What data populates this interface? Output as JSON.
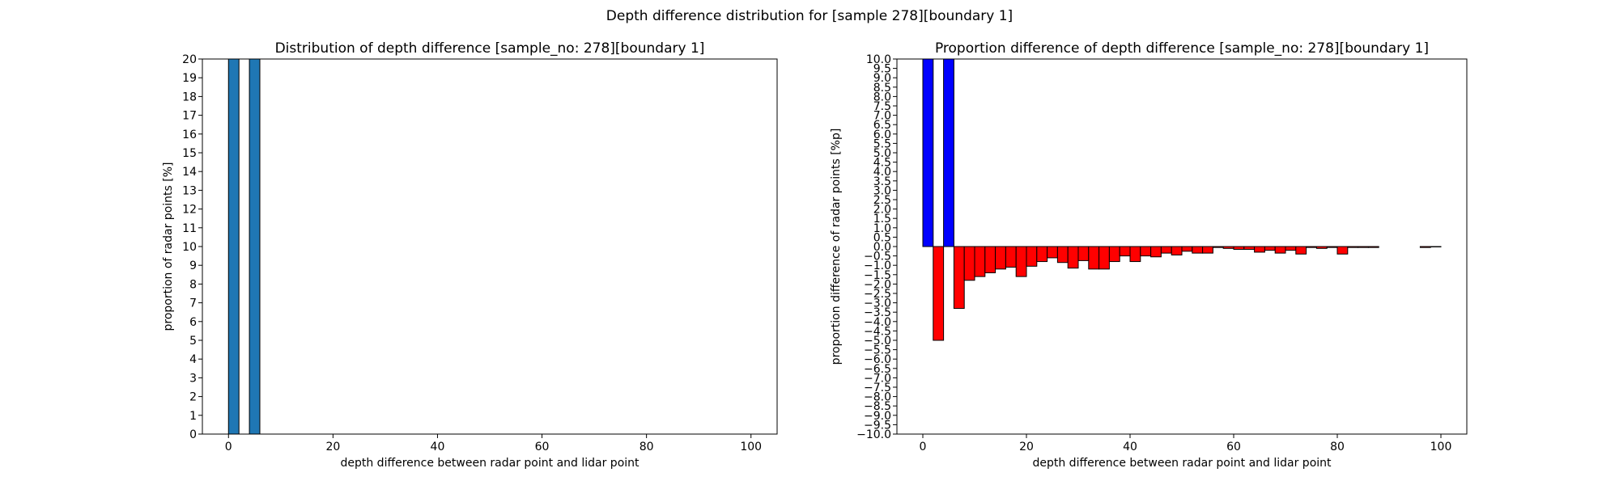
{
  "figure": {
    "suptitle": "Depth difference distribution for [sample 278][boundary 1]"
  },
  "chart_data": [
    {
      "type": "bar",
      "title": "Distribution of depth difference [sample_no: 278][boundary 1]",
      "xlabel": "depth difference between radar point and lidar point",
      "ylabel": "proportion of radar points [%]",
      "xlim": [
        -5,
        105
      ],
      "ylim": [
        0,
        20
      ],
      "xticks": [
        0,
        20,
        40,
        60,
        80,
        100
      ],
      "yticks": [
        0,
        1,
        2,
        3,
        4,
        5,
        6,
        7,
        8,
        9,
        10,
        11,
        12,
        13,
        14,
        15,
        16,
        17,
        18,
        19,
        20
      ],
      "bar_width": 2,
      "color": "#1f77b4",
      "x": [
        1,
        5
      ],
      "values": [
        20,
        20
      ]
    },
    {
      "type": "bar",
      "title": "Proportion difference of depth difference [sample_no: 278][boundary 1]",
      "xlabel": "depth difference between radar point and lidar point",
      "ylabel": "proportion difference of radar points [%p]",
      "xlim": [
        -5,
        105
      ],
      "ylim": [
        -10,
        10
      ],
      "xticks": [
        0,
        20,
        40,
        60,
        80,
        100
      ],
      "yticks": [
        -10,
        -9.5,
        -9,
        -8.5,
        -8,
        -7.5,
        -7,
        -6.5,
        -6,
        -5.5,
        -5,
        -4.5,
        -4,
        -3.5,
        -3,
        -2.5,
        -2,
        -1.5,
        -1,
        -0.5,
        0,
        0.5,
        1,
        1.5,
        2,
        2.5,
        3,
        3.5,
        4,
        4.5,
        5,
        5.5,
        6,
        6.5,
        7,
        7.5,
        8,
        8.5,
        9,
        9.5,
        10
      ],
      "bar_width": 2,
      "positive_color": "#0000ff",
      "negative_color": "#ff0000",
      "x": [
        1,
        3,
        5,
        7,
        9,
        11,
        13,
        15,
        17,
        19,
        21,
        23,
        25,
        27,
        29,
        31,
        33,
        35,
        37,
        39,
        41,
        43,
        45,
        47,
        49,
        51,
        53,
        55,
        57,
        59,
        61,
        63,
        65,
        67,
        69,
        71,
        73,
        75,
        77,
        79,
        81,
        83,
        85,
        87,
        89,
        91,
        93,
        95,
        97,
        99
      ],
      "values": [
        10,
        -5.0,
        10,
        -3.3,
        -1.8,
        -1.6,
        -1.4,
        -1.2,
        -1.1,
        -1.6,
        -1.05,
        -0.8,
        -0.6,
        -0.85,
        -1.15,
        -0.75,
        -1.2,
        -1.2,
        -0.8,
        -0.5,
        -0.8,
        -0.5,
        -0.55,
        -0.35,
        -0.45,
        -0.25,
        -0.35,
        -0.35,
        -0.05,
        -0.1,
        -0.15,
        -0.15,
        -0.3,
        -0.2,
        -0.35,
        -0.2,
        -0.4,
        -0.05,
        -0.1,
        -0.05,
        -0.4,
        -0.05,
        -0.05,
        -0.05,
        0,
        0,
        0,
        0,
        -0.05,
        -0.02
      ]
    }
  ]
}
